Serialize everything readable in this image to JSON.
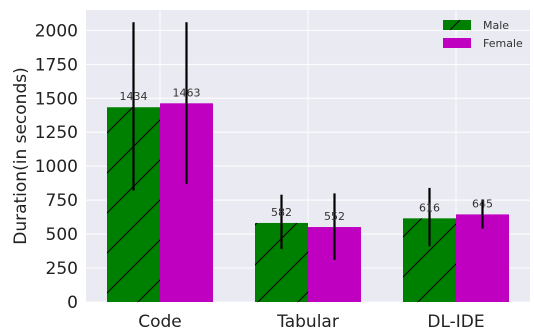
{
  "chart_data": {
    "type": "bar",
    "title": "",
    "xlabel": "",
    "ylabel": "Duration(in seconds)",
    "categories": [
      "Code",
      "Tabular",
      "DL-IDE"
    ],
    "ylim": [
      0,
      2150
    ],
    "yticks": [
      0,
      250,
      500,
      750,
      1000,
      1250,
      1500,
      1750,
      2000
    ],
    "grid": true,
    "legend_position": "top-right",
    "series": [
      {
        "name": "Male",
        "values": [
          1434,
          582,
          616
        ],
        "error_low": [
          820,
          390,
          410
        ],
        "error_high": [
          2060,
          790,
          840
        ],
        "labels": [
          "1434",
          "582",
          "616"
        ],
        "color": "#008000",
        "hatch": "/"
      },
      {
        "name": "Female",
        "values": [
          1463,
          552,
          645
        ],
        "error_low": [
          870,
          310,
          540
        ],
        "error_high": [
          2060,
          800,
          755
        ],
        "labels": [
          "1463",
          "552",
          "645"
        ],
        "color": "#c000c0",
        "hatch": "none"
      }
    ],
    "background_color": "#eaeaf2",
    "grid_color": "#ffffff"
  }
}
